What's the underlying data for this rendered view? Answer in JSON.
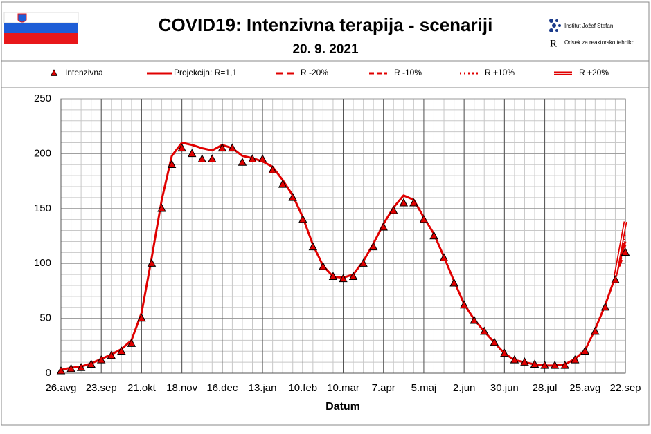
{
  "header": {
    "title": "COVID19: Intenzivna terapija - scenariji",
    "subtitle": "20. 9. 2021",
    "logo_line1": "Institut Jožef Stefan",
    "logo_line2": "Odsek za reaktorsko tehniko"
  },
  "chart_data": {
    "type": "line",
    "x_label": "Datum",
    "categories": [
      "26.avg",
      null,
      null,
      null,
      "23.sep",
      null,
      null,
      null,
      "21.okt",
      null,
      null,
      null,
      "18.nov",
      null,
      null,
      null,
      "16.dec",
      null,
      null,
      null,
      "13.jan",
      null,
      null,
      null,
      "10.feb",
      null,
      null,
      null,
      "10.mar",
      null,
      null,
      null,
      "7.apr",
      null,
      null,
      null,
      "5.maj",
      null,
      null,
      null,
      "2.jun",
      null,
      null,
      null,
      "30.jun",
      null,
      null,
      null,
      "28.jul",
      null,
      null,
      null,
      "25.avg",
      null,
      null,
      null,
      "22.sep"
    ],
    "ylim": [
      0,
      250
    ],
    "yticks": [
      0,
      50,
      100,
      150,
      200,
      250
    ],
    "grid": true,
    "series": [
      {
        "name": "Intenzivna",
        "color": "#e00000",
        "style": "triangle",
        "values": [
          2,
          4,
          5,
          8,
          12,
          16,
          20,
          27,
          50,
          100,
          150,
          190,
          205,
          200,
          195,
          195,
          205,
          205,
          192,
          195,
          195,
          185,
          172,
          160,
          140,
          115,
          97,
          88,
          86,
          88,
          100,
          115,
          133,
          148,
          155,
          155,
          140,
          125,
          105,
          82,
          62,
          48,
          38,
          28,
          18,
          12,
          10,
          8,
          7,
          7,
          7,
          12,
          20,
          38,
          60,
          85,
          110
        ]
      },
      {
        "name": "Projekcija: R=1,1",
        "color": "#e00000",
        "style": "solid",
        "values": [
          3,
          5,
          6,
          9,
          13,
          17,
          22,
          30,
          55,
          105,
          158,
          198,
          210,
          208,
          205,
          203,
          208,
          205,
          198,
          196,
          193,
          188,
          176,
          162,
          142,
          117,
          98,
          88,
          87,
          90,
          102,
          118,
          136,
          151,
          162,
          158,
          142,
          127,
          106,
          84,
          63,
          49,
          38,
          28,
          18,
          12,
          10,
          8,
          7,
          7,
          8,
          13,
          21,
          40,
          62,
          88,
          120
        ]
      },
      {
        "name": "R -20%",
        "color": "#e00000",
        "style": "dash-long",
        "values": [
          null,
          null,
          null,
          null,
          null,
          null,
          null,
          null,
          null,
          null,
          null,
          null,
          null,
          null,
          null,
          null,
          null,
          null,
          null,
          null,
          null,
          null,
          null,
          null,
          null,
          null,
          null,
          null,
          null,
          null,
          null,
          null,
          null,
          null,
          null,
          null,
          null,
          null,
          null,
          null,
          null,
          null,
          null,
          null,
          null,
          null,
          null,
          null,
          null,
          null,
          null,
          null,
          null,
          null,
          null,
          88,
          112
        ]
      },
      {
        "name": "R -10%",
        "color": "#e00000",
        "style": "dash",
        "values": [
          null,
          null,
          null,
          null,
          null,
          null,
          null,
          null,
          null,
          null,
          null,
          null,
          null,
          null,
          null,
          null,
          null,
          null,
          null,
          null,
          null,
          null,
          null,
          null,
          null,
          null,
          null,
          null,
          null,
          null,
          null,
          null,
          null,
          null,
          null,
          null,
          null,
          null,
          null,
          null,
          null,
          null,
          null,
          null,
          null,
          null,
          null,
          null,
          null,
          null,
          null,
          null,
          null,
          null,
          null,
          88,
          117
        ]
      },
      {
        "name": "R +10%",
        "color": "#e00000",
        "style": "dot",
        "values": [
          null,
          null,
          null,
          null,
          null,
          null,
          null,
          null,
          null,
          null,
          null,
          null,
          null,
          null,
          null,
          null,
          null,
          null,
          null,
          null,
          null,
          null,
          null,
          null,
          null,
          null,
          null,
          null,
          null,
          null,
          null,
          null,
          null,
          null,
          null,
          null,
          null,
          null,
          null,
          null,
          null,
          null,
          null,
          null,
          null,
          null,
          null,
          null,
          null,
          null,
          null,
          null,
          null,
          null,
          null,
          88,
          128
        ]
      },
      {
        "name": "R +20%",
        "color": "#e00000",
        "style": "double",
        "values": [
          null,
          null,
          null,
          null,
          null,
          null,
          null,
          null,
          null,
          null,
          null,
          null,
          null,
          null,
          null,
          null,
          null,
          null,
          null,
          null,
          null,
          null,
          null,
          null,
          null,
          null,
          null,
          null,
          null,
          null,
          null,
          null,
          null,
          null,
          null,
          null,
          null,
          null,
          null,
          null,
          null,
          null,
          null,
          null,
          null,
          null,
          null,
          null,
          null,
          null,
          null,
          null,
          null,
          null,
          null,
          88,
          138
        ]
      }
    ]
  }
}
